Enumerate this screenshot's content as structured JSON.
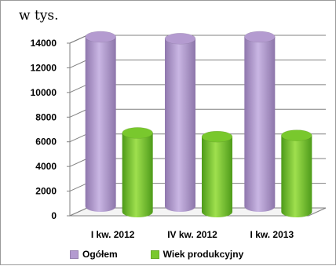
{
  "chart_data": {
    "type": "bar",
    "variant": "3d-cylinder",
    "unit_label": "w tys.",
    "categories": [
      "I kw. 2012",
      "IV kw. 2012",
      "I kw. 2013"
    ],
    "series": [
      {
        "name": "Ogółem",
        "values": [
          13750,
          13600,
          13750
        ],
        "color": "#b49bd0"
      },
      {
        "name": "Wiek produkcyjny",
        "values": [
          6400,
          6100,
          6200
        ],
        "color": "#79c82d"
      }
    ],
    "ylim": [
      0,
      14000
    ],
    "yticks": [
      0,
      2000,
      4000,
      6000,
      8000,
      10000,
      12000,
      14000
    ],
    "grid": true,
    "legend_position": "bottom"
  }
}
